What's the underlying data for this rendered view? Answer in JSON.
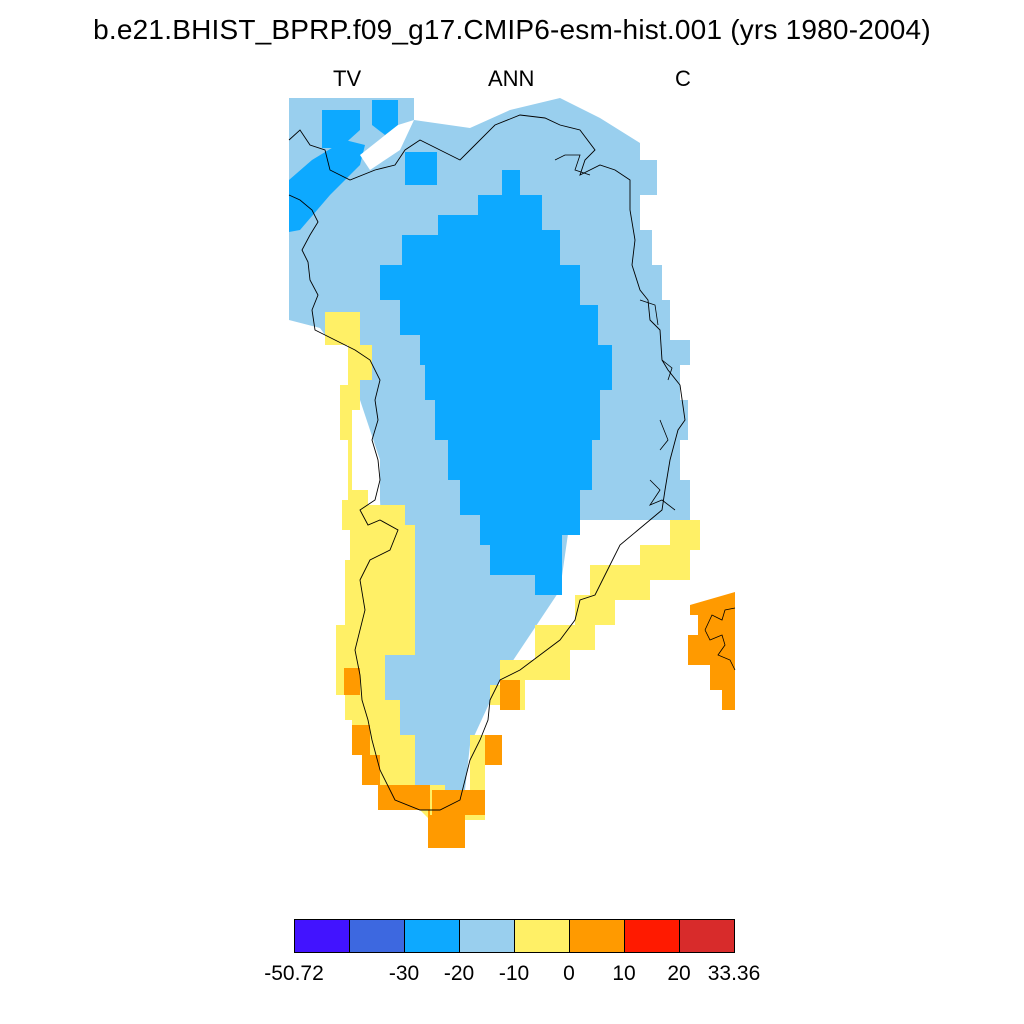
{
  "title": "b.e21.BHIST_BPRP.f09_g17.CMIP6-esm-hist.001 (yrs 1980-2004)",
  "subtitles": {
    "left": "TV",
    "center": "ANN",
    "right": "C"
  },
  "colors": {
    "lt_neg30": "#4213ff",
    "neg30_neg20": "#3d68e0",
    "neg20_neg10": "#0da9ff",
    "neg10_0": "#99cfee",
    "0_10": "#fff066",
    "10_20": "#ff9a00",
    "20_30": "#ff1a00",
    "gt_30": "#d82b2b",
    "coast": "#000000"
  },
  "colorbar": {
    "boxes": [
      "#4213ff",
      "#3d68e0",
      "#0da9ff",
      "#99cfee",
      "#fff066",
      "#ff9a00",
      "#ff1a00",
      "#d82b2b"
    ],
    "labels": [
      "-50.72",
      "-30",
      "-20",
      "-10",
      "0",
      "10",
      "20",
      "33.36"
    ]
  }
}
